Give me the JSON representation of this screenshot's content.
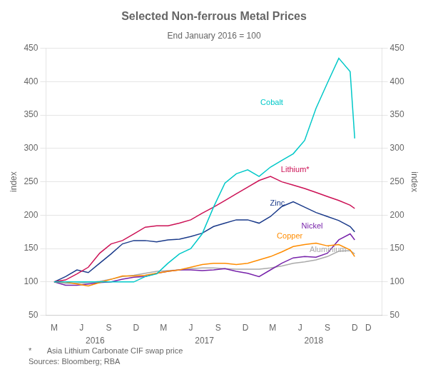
{
  "chart_data": {
    "type": "line",
    "title": "Selected Non-ferrous Metal Prices",
    "subtitle": "End January 2016 = 100",
    "ylabel": "index",
    "y2label": "index",
    "footnotes": [
      "*       Asia Lithium Carbonate CIF swap price",
      "Sources: Bloomberg; RBA"
    ],
    "grid": "y",
    "xlim": [
      -0.3,
      12.0
    ],
    "xticks": [
      {
        "value": 0,
        "label": "M"
      },
      {
        "value": 1,
        "label": "J"
      },
      {
        "value": 2,
        "label": "S"
      },
      {
        "value": 3,
        "label": "D"
      },
      {
        "value": 4,
        "label": "M"
      },
      {
        "value": 5,
        "label": "J"
      },
      {
        "value": 6,
        "label": "S"
      },
      {
        "value": 7,
        "label": "D"
      },
      {
        "value": 8,
        "label": "M"
      },
      {
        "value": 9,
        "label": "J"
      },
      {
        "value": 10,
        "label": "S"
      },
      {
        "value": 11,
        "label": "D"
      },
      {
        "value": 11.5,
        "label": "D"
      }
    ],
    "year_labels": [
      {
        "text": "2016",
        "x": 1.5
      },
      {
        "text": "2017",
        "x": 5.5
      },
      {
        "text": "2018",
        "x": 9.5
      }
    ],
    "ylim": [
      50,
      450
    ],
    "yticks": [
      50,
      100,
      150,
      200,
      250,
      300,
      350,
      400,
      450
    ],
    "y2lim": [
      50,
      450
    ],
    "y2ticks": [
      50,
      100,
      150,
      200,
      250,
      300,
      350,
      400,
      450
    ],
    "x": [
      0,
      0.417,
      0.833,
      1.25,
      1.667,
      2.083,
      2.5,
      2.917,
      3.333,
      3.75,
      4.167,
      4.583,
      5.0,
      5.417,
      5.833,
      6.25,
      6.667,
      7.083,
      7.5,
      7.917,
      8.333,
      8.75,
      9.167,
      9.583,
      10.0,
      10.417,
      10.833,
      11.0
    ],
    "series": [
      {
        "name": "Cobalt",
        "color": "#00C8C8",
        "label": {
          "x": 7.55,
          "y": 368
        },
        "values": [
          100,
          100,
          100,
          100,
          100,
          100,
          100,
          100,
          108,
          112,
          128,
          142,
          150,
          172,
          212,
          248,
          262,
          268,
          258,
          272,
          282,
          292,
          312,
          360,
          398,
          435,
          415,
          315
        ]
      },
      {
        "name": "Lithium*",
        "color": "#CC1155",
        "label": {
          "x": 8.3,
          "y": 268
        },
        "values": [
          100,
          103,
          112,
          122,
          143,
          157,
          162,
          172,
          182,
          184,
          184,
          188,
          193,
          203,
          212,
          222,
          232,
          242,
          252,
          258,
          250,
          245,
          240,
          234,
          228,
          222,
          215,
          210
        ]
      },
      {
        "name": "Zinc",
        "color": "#1A3A8A",
        "label": {
          "x": 7.9,
          "y": 218
        },
        "values": [
          100,
          108,
          118,
          114,
          128,
          142,
          157,
          162,
          162,
          160,
          163,
          164,
          168,
          173,
          183,
          188,
          193,
          193,
          188,
          198,
          213,
          220,
          212,
          204,
          198,
          192,
          183,
          175
        ]
      },
      {
        "name": "Copper",
        "color": "#FF8C00",
        "label": {
          "x": 8.15,
          "y": 168
        },
        "values": [
          100,
          100,
          97,
          94,
          99,
          104,
          109,
          109,
          110,
          113,
          116,
          118,
          122,
          126,
          128,
          128,
          126,
          128,
          133,
          138,
          145,
          153,
          156,
          158,
          154,
          156,
          148,
          138
        ]
      },
      {
        "name": "Nickel",
        "color": "#7722AA",
        "label": {
          "x": 9.05,
          "y": 183
        },
        "values": [
          100,
          95,
          95,
          97,
          99,
          100,
          104,
          107,
          108,
          113,
          116,
          118,
          118,
          117,
          118,
          120,
          116,
          113,
          108,
          118,
          128,
          136,
          138,
          137,
          143,
          163,
          172,
          163
        ]
      },
      {
        "name": "Aluminium",
        "color": "#AAAAAA",
        "label": {
          "x": 9.35,
          "y": 148
        },
        "values": [
          100,
          98,
          98,
          99,
          101,
          104,
          108,
          110,
          113,
          116,
          117,
          118,
          120,
          121,
          121,
          120,
          119,
          119,
          119,
          121,
          124,
          128,
          130,
          133,
          138,
          146,
          147,
          142
        ]
      }
    ]
  }
}
